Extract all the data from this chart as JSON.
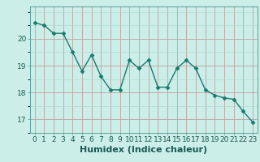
{
  "x": [
    0,
    1,
    2,
    3,
    4,
    5,
    6,
    7,
    8,
    9,
    10,
    11,
    12,
    13,
    14,
    15,
    16,
    17,
    18,
    19,
    20,
    21,
    22,
    23
  ],
  "y": [
    20.6,
    20.5,
    20.2,
    20.2,
    19.5,
    18.8,
    19.4,
    18.6,
    18.1,
    18.1,
    19.2,
    18.9,
    19.2,
    18.2,
    18.2,
    18.9,
    19.2,
    18.9,
    18.1,
    17.9,
    17.8,
    17.75,
    17.3,
    16.9
  ],
  "line_color": "#1a7a6e",
  "marker": "D",
  "marker_size": 2.5,
  "bg_color": "#cceee8",
  "grid_color_major": "#aad4ce",
  "grid_color_minor": "#c2e6e0",
  "xlabel": "Humidex (Indice chaleur)",
  "ylim": [
    16.5,
    21.2
  ],
  "xlim": [
    -0.5,
    23.5
  ],
  "yticks": [
    17,
    18,
    19,
    20
  ],
  "xticks": [
    0,
    1,
    2,
    3,
    4,
    5,
    6,
    7,
    8,
    9,
    10,
    11,
    12,
    13,
    14,
    15,
    16,
    17,
    18,
    19,
    20,
    21,
    22,
    23
  ],
  "tick_label_size": 6.5,
  "xlabel_size": 8,
  "linewidth": 1.0,
  "spine_color": "#5a9e98"
}
